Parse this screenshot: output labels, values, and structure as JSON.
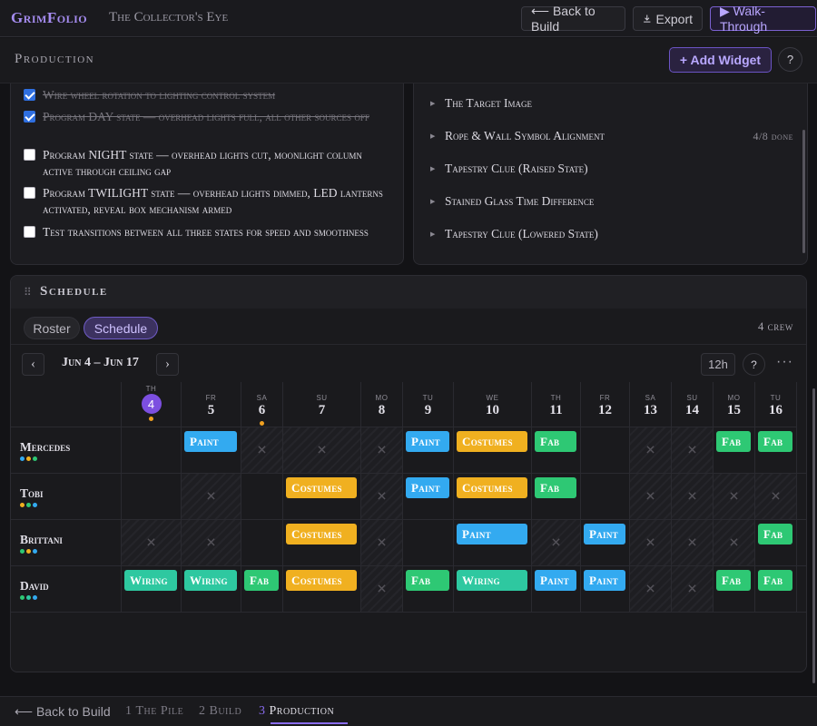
{
  "app": {
    "brand": "GrimFolio",
    "subtitle": "The Collector's Eye"
  },
  "header": {
    "back_label": "⟵ Back to Build",
    "export_label": "Export",
    "walk_label": "▶ Walk-Through"
  },
  "production": {
    "title": "Production",
    "add_widget": "+ Add Widget",
    "help": "?"
  },
  "tasks": [
    {
      "text": "Wire wheel rotation to lighting control system",
      "done": true
    },
    {
      "text": "Program DAY state — overhead lights full, all other sources off",
      "done": true
    },
    {
      "text": "Program NIGHT state — overhead lights cut, moonlight column active through ceiling gap",
      "done": false
    },
    {
      "text": "Program TWILIGHT state — overhead lights dimmed, LED lanterns activated, reveal box mechanism armed",
      "done": false
    },
    {
      "text": "Test transitions between all three states for speed and smoothness",
      "done": false
    }
  ],
  "clues": [
    {
      "label": "The Target Image",
      "count": ""
    },
    {
      "label": "Rope & Wall Symbol Alignment",
      "count": "4/8 done"
    },
    {
      "label": "Tapestry Clue (Raised State)",
      "count": ""
    },
    {
      "label": "Stained Glass Time Difference",
      "count": ""
    },
    {
      "label": "Tapestry Clue (Lowered State)",
      "count": ""
    }
  ],
  "schedule": {
    "title": "Schedule",
    "grip": "⠿",
    "tabs": {
      "roster": "Roster",
      "schedule": "Schedule"
    },
    "crew_count": "4 crew",
    "date_range": "Jun 4 – Jun 17",
    "prev": "‹",
    "next": "›",
    "hours": "12h",
    "help": "?",
    "more": "···",
    "days": [
      {
        "name": "TH",
        "num": "4",
        "today": true,
        "dot": true
      },
      {
        "name": "FR",
        "num": "5"
      },
      {
        "name": "SA",
        "num": "6",
        "dot": true
      },
      {
        "name": "SU",
        "num": "7"
      },
      {
        "name": "MO",
        "num": "8"
      },
      {
        "name": "TU",
        "num": "9"
      },
      {
        "name": "WE",
        "num": "10"
      },
      {
        "name": "TH",
        "num": "11"
      },
      {
        "name": "FR",
        "num": "12"
      },
      {
        "name": "SA",
        "num": "13"
      },
      {
        "name": "SU",
        "num": "14"
      },
      {
        "name": "MO",
        "num": "15"
      },
      {
        "name": "TU",
        "num": "16"
      }
    ],
    "crew": [
      {
        "name": "Mercedes",
        "dots": [
          "#33aaf0",
          "#f0b020",
          "#2ec874"
        ],
        "cells": [
          "",
          "Paint",
          "x",
          "x",
          "x",
          "Paint",
          "Costumes",
          "Fab",
          "",
          "x",
          "x",
          "Fab",
          "Fab"
        ]
      },
      {
        "name": "Tobi",
        "dots": [
          "#f0b020",
          "#2ec874",
          "#33aaf0"
        ],
        "cells": [
          "",
          "x",
          "",
          "Costumes",
          "x",
          "Paint",
          "Costumes",
          "Fab",
          "",
          "x",
          "x",
          "x",
          "x"
        ]
      },
      {
        "name": "Brittani",
        "dots": [
          "#2ec874",
          "#f0b020",
          "#33aaf0"
        ],
        "cells": [
          "x",
          "x",
          "",
          "Costumes",
          "x",
          "",
          "Paint",
          "x",
          "Paint",
          "x",
          "x",
          "x",
          "Fab"
        ]
      },
      {
        "name": "David",
        "dots": [
          "#2ec874",
          "#2ec8a0",
          "#33aaf0"
        ],
        "cells": [
          "Wiring",
          "Wiring",
          "Fab",
          "Costumes",
          "x",
          "Fab",
          "Wiring",
          "Paint",
          "Paint",
          "x",
          "x",
          "Fab",
          "Fab"
        ]
      }
    ]
  },
  "footer": {
    "back": "⟵ Back to Build",
    "steps": [
      {
        "num": "1",
        "label": "The Pile"
      },
      {
        "num": "2",
        "label": "Build"
      },
      {
        "num": "3",
        "label": "Production"
      }
    ]
  },
  "colors": {
    "accent": "#8a6cf0",
    "paint": "#33aaf0",
    "costumes": "#f0b020",
    "fab": "#2ec874",
    "wiring": "#2ec8a0"
  }
}
